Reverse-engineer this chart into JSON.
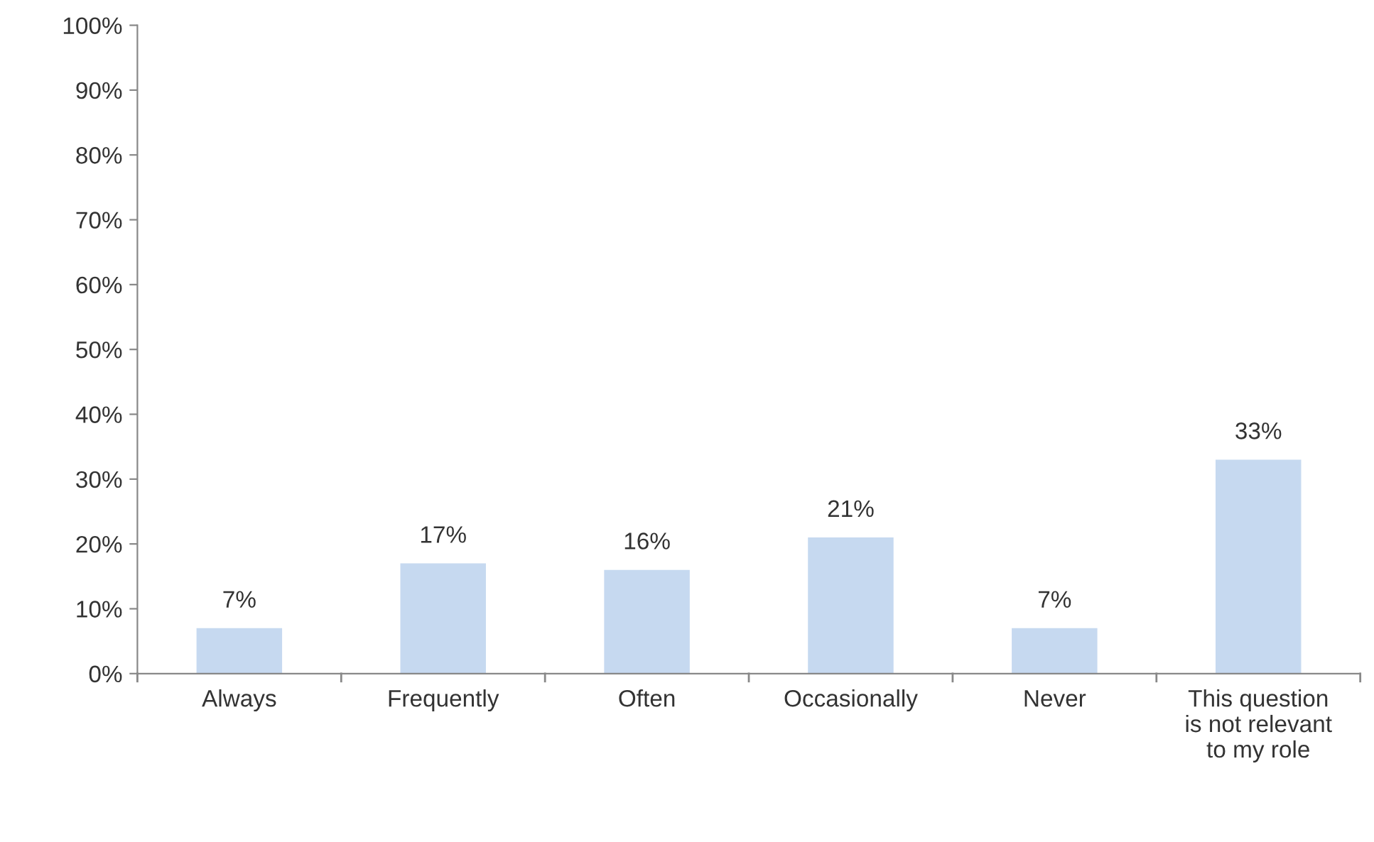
{
  "chart_data": {
    "type": "bar",
    "categories": [
      "Always",
      "Frequently",
      "Often",
      "Occasionally",
      "Never",
      "This question\nis not relevant\nto my role"
    ],
    "values": [
      7,
      17,
      16,
      21,
      7,
      33
    ],
    "value_labels": [
      "7%",
      "17%",
      "16%",
      "21%",
      "7%",
      "33%"
    ],
    "color": "#c6d9f0",
    "ylim": [
      0,
      100
    ],
    "yticks": [
      {
        "value": 0,
        "label": "0%"
      },
      {
        "value": 10,
        "label": "10%"
      },
      {
        "value": 20,
        "label": "20%"
      },
      {
        "value": 30,
        "label": "30%"
      },
      {
        "value": 40,
        "label": "40%"
      },
      {
        "value": 50,
        "label": "50%"
      },
      {
        "value": 60,
        "label": "60%"
      },
      {
        "value": 70,
        "label": "70%"
      },
      {
        "value": 80,
        "label": "80%"
      },
      {
        "value": 90,
        "label": "90%"
      },
      {
        "value": 100,
        "label": "100%"
      }
    ],
    "grid": false,
    "legend": false
  }
}
